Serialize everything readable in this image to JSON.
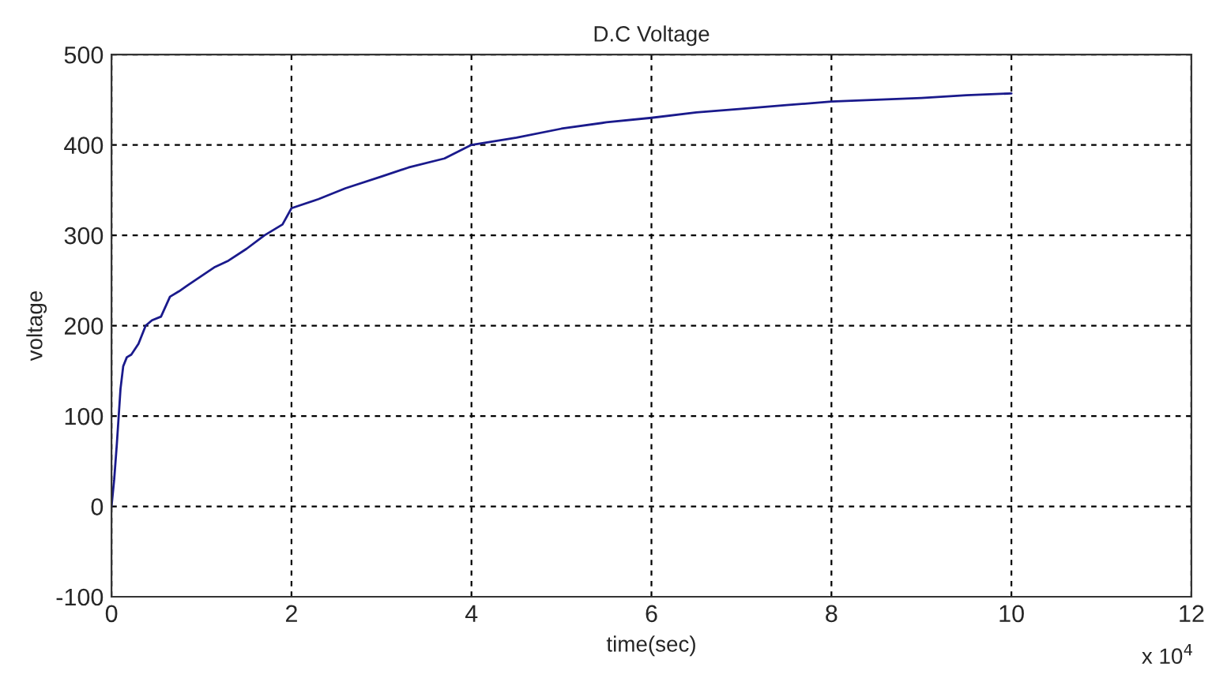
{
  "chart_data": {
    "type": "line",
    "title": "D.C Voltage",
    "xlabel": "time(sec)",
    "ylabel": "voltage",
    "annotations": [
      "x 10$^{4}$"
    ],
    "x": [
      0,
      0.03,
      0.06,
      0.1,
      0.13,
      0.17,
      0.22,
      0.3,
      0.38,
      0.45,
      0.55,
      0.65,
      0.75,
      0.85,
      1.0,
      1.15,
      1.3,
      1.5,
      1.7,
      1.9,
      2.0,
      2.3,
      2.6,
      3.0,
      3.3,
      3.7,
      4.0,
      4.5,
      5.0,
      5.5,
      6.0,
      6.5,
      7.0,
      7.5,
      8.0,
      8.5,
      9.0,
      9.5,
      10.0
    ],
    "series": [
      {
        "color": "#1a1a8c",
        "values": [
          0,
          30,
          70,
          130,
          155,
          165,
          168,
          180,
          200,
          206,
          210,
          232,
          238,
          245,
          255,
          265,
          272,
          285,
          300,
          312,
          330,
          340,
          352,
          365,
          375,
          385,
          400,
          408,
          418,
          425,
          430,
          436,
          440,
          444,
          448,
          450,
          452,
          455,
          457
        ]
      }
    ],
    "xlim": [
      0,
      12
    ],
    "xticks": [
      0,
      2,
      4,
      6,
      8,
      10,
      12
    ],
    "ylim": [
      -100,
      500
    ],
    "yticks": [
      -100,
      0,
      100,
      200,
      300,
      400,
      500
    ],
    "grid": true,
    "line_style": "solid",
    "marker": "none"
  }
}
